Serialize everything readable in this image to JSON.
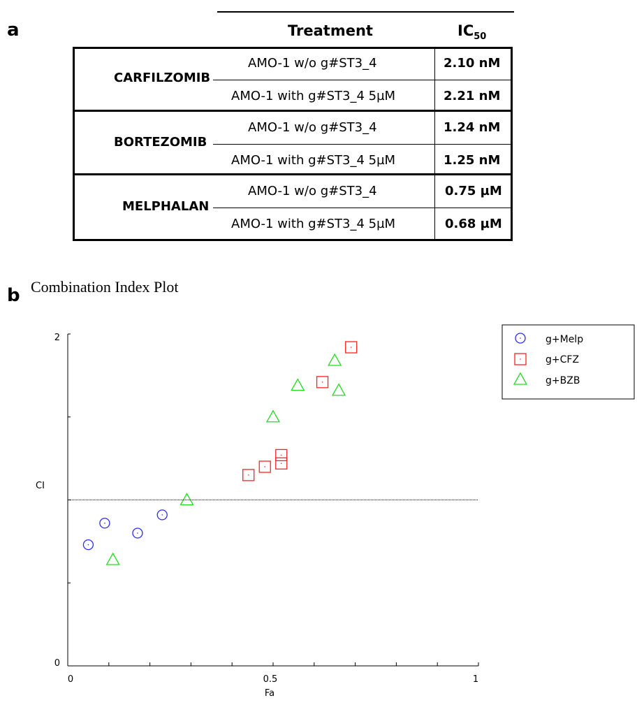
{
  "panels": {
    "a": "a",
    "b": "b"
  },
  "table": {
    "header_treatment": "Treatment",
    "header_ic50_main": "IC",
    "header_ic50_sub": "50",
    "groups": [
      {
        "drug": "CARFILZOMIB",
        "rows": [
          {
            "treatment": "AMO-1 w/o g#ST3_4",
            "ic50": "2.10 nM"
          },
          {
            "treatment": "AMO-1 with g#ST3_4 5µM",
            "ic50": "2.21 nM"
          }
        ]
      },
      {
        "drug": "BORTEZOMIB",
        "rows": [
          {
            "treatment": "AMO-1 w/o g#ST3_4",
            "ic50": "1.24 nM"
          },
          {
            "treatment": "AMO-1 with g#ST3_4 5µM",
            "ic50": "1.25 nM"
          }
        ]
      },
      {
        "drug": "MELPHALAN",
        "rows": [
          {
            "treatment": "AMO-1 w/o g#ST3_4",
            "ic50": "0.75 µM"
          },
          {
            "treatment": "AMO-1 with g#ST3_4 5µM",
            "ic50": "0.68 µM"
          }
        ]
      }
    ]
  },
  "chart_data": {
    "type": "scatter",
    "title": "Combination Index Plot",
    "xlabel": "Fa",
    "ylabel": "CI",
    "xlim": [
      0,
      1
    ],
    "ylim": [
      0,
      2
    ],
    "x_tick_labels": [
      "0",
      "0.5",
      "1"
    ],
    "y_tick_labels": [
      "0",
      "2"
    ],
    "reference_line_y": 1,
    "legend_position": "top-right, outside plot",
    "grid": false,
    "series": [
      {
        "name": "g+Melp",
        "marker": "circle",
        "color": "#2b2bff",
        "x": [
          0.05,
          0.09,
          0.17,
          0.23
        ],
        "y": [
          0.73,
          0.86,
          0.8,
          0.91
        ]
      },
      {
        "name": "g+CFZ",
        "marker": "square",
        "color": "#ff2020",
        "x": [
          0.44,
          0.48,
          0.52,
          0.52,
          0.62,
          0.69
        ],
        "y": [
          1.15,
          1.2,
          1.22,
          1.27,
          1.71,
          1.92
        ]
      },
      {
        "name": "g+BZB",
        "marker": "triangle",
        "color": "#22dd22",
        "x": [
          0.11,
          0.29,
          0.5,
          0.56,
          0.65,
          0.66
        ],
        "y": [
          0.64,
          1.0,
          1.5,
          1.69,
          1.84,
          1.66
        ]
      }
    ]
  }
}
